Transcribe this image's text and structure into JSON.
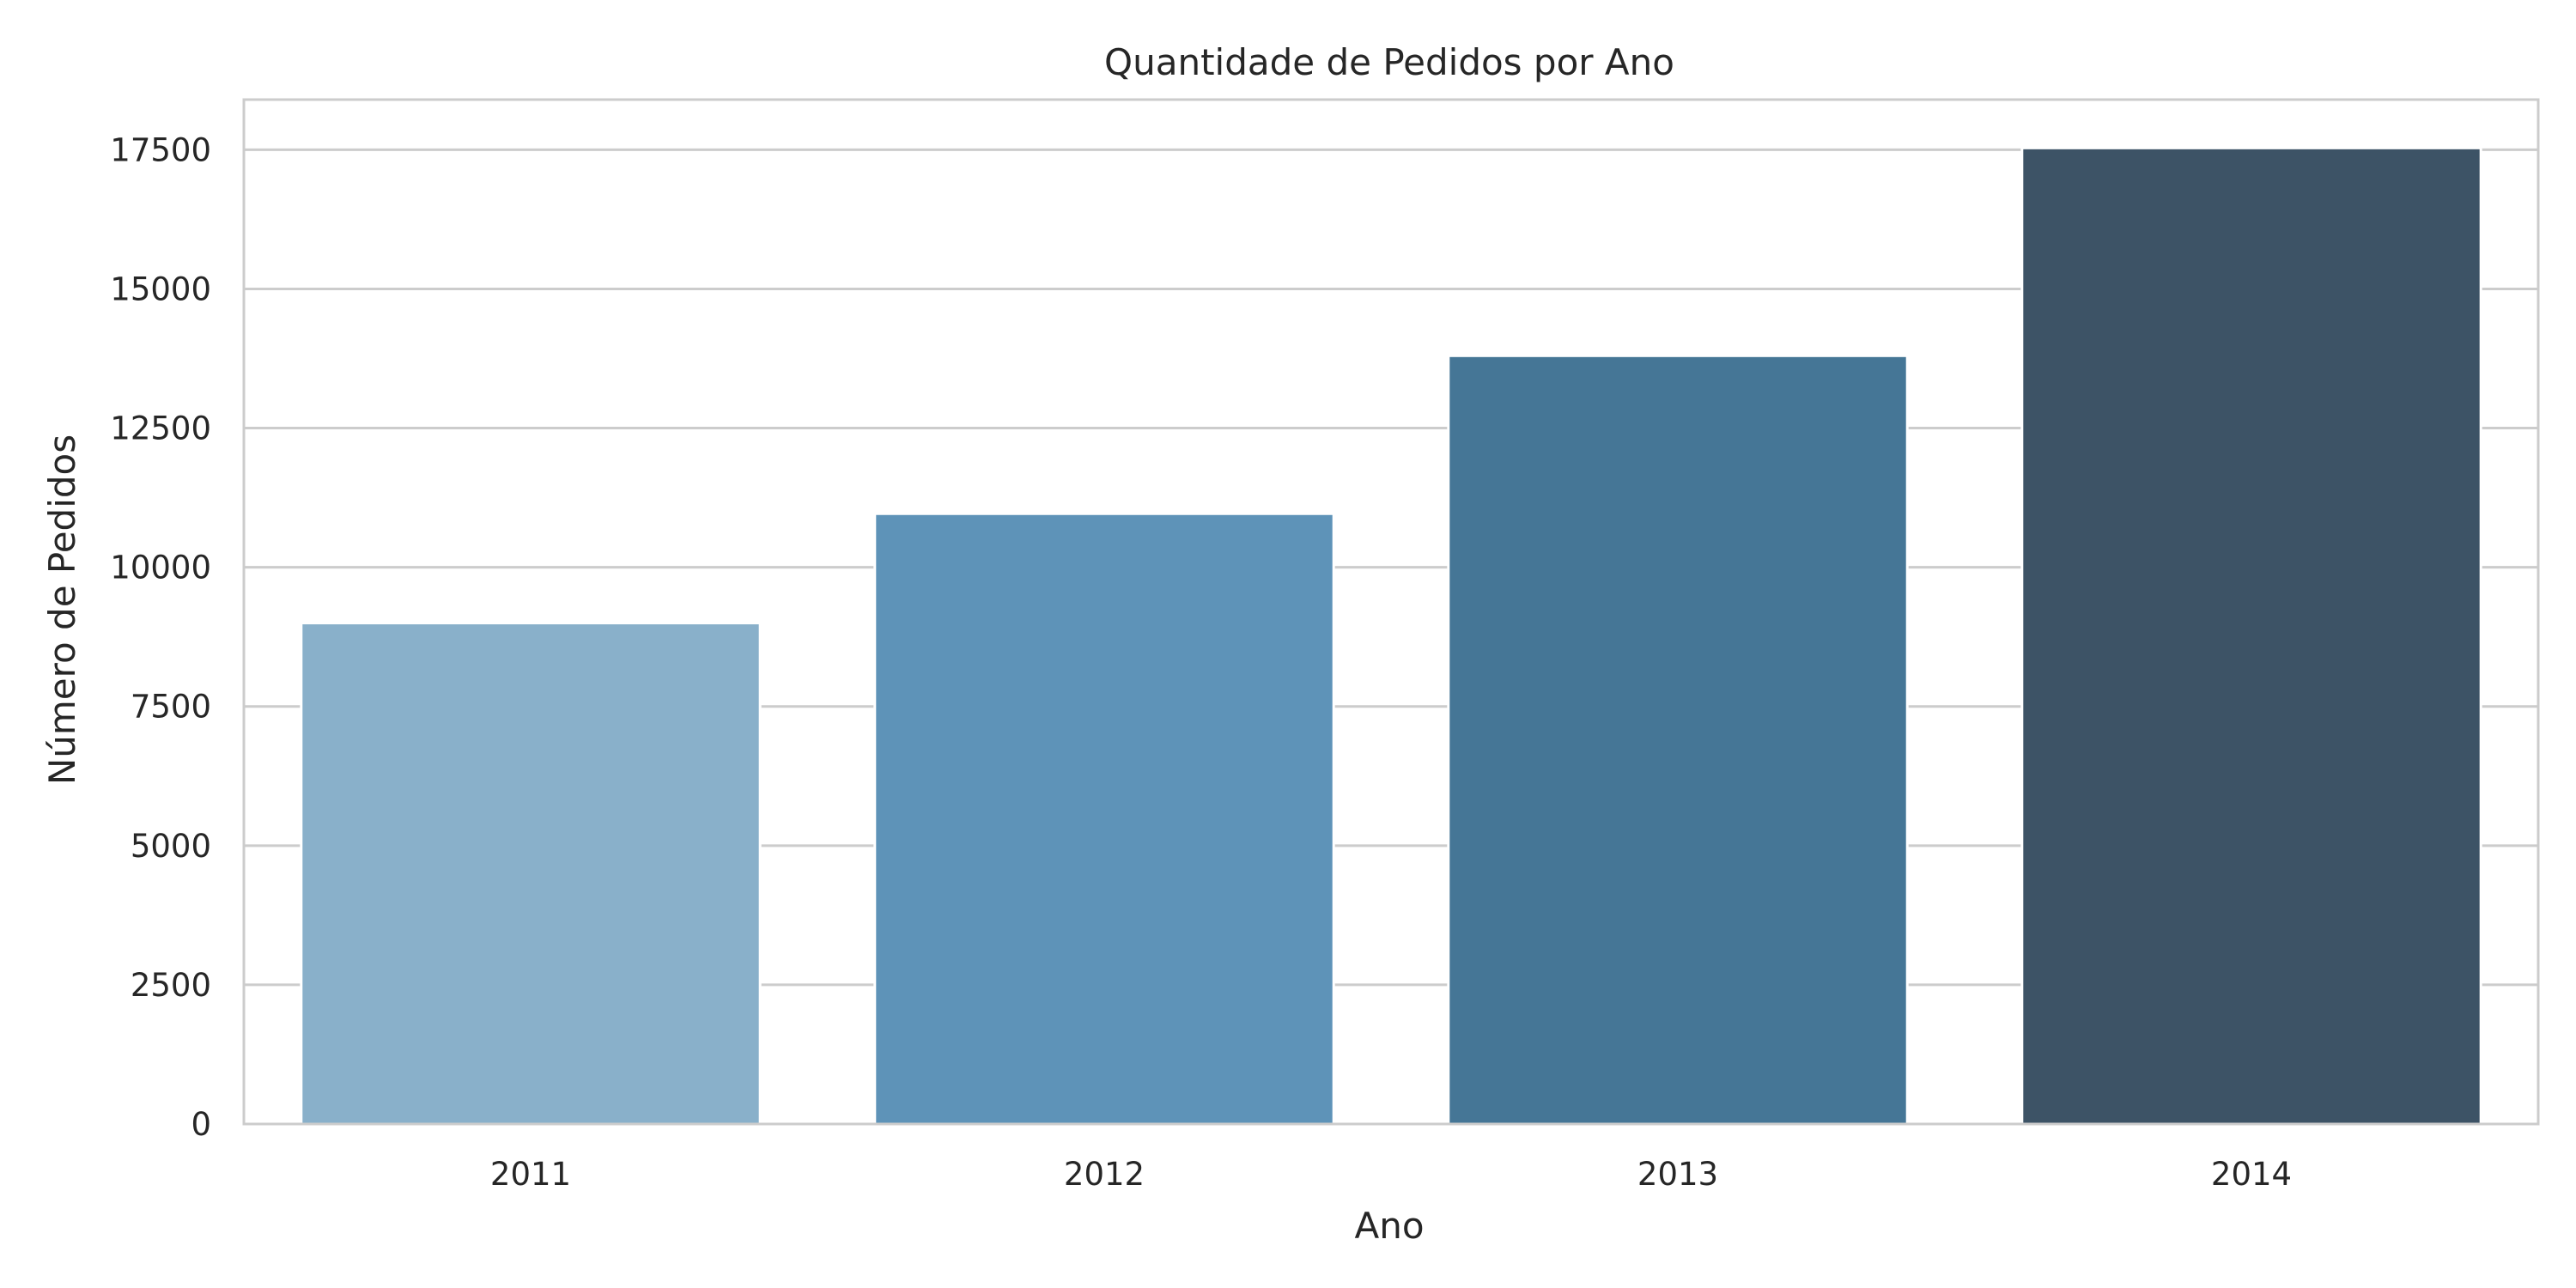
{
  "chart_data": {
    "type": "bar",
    "title": "Quantidade de Pedidos por Ano",
    "xlabel": "Ano",
    "ylabel": "Número de Pedidos",
    "categories": [
      "2011",
      "2012",
      "2013",
      "2014"
    ],
    "values": [
      8998,
      10962,
      13799,
      17531
    ],
    "colors": [
      "#89b0ca",
      "#5e93b8",
      "#457696",
      "#3d5366"
    ],
    "ylim": [
      0,
      18400
    ],
    "yticks": [
      0,
      2500,
      5000,
      7500,
      10000,
      12500,
      15000,
      17500
    ],
    "ytick_labels": [
      "0",
      "2500",
      "5000",
      "7500",
      "10000",
      "12500",
      "15000",
      "17500"
    ],
    "grid": "horizontal",
    "legend": "none"
  }
}
